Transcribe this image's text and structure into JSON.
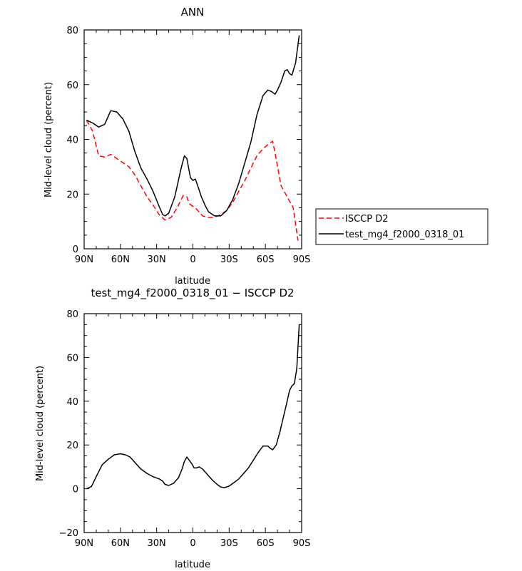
{
  "chart_data": [
    {
      "type": "line",
      "title": "ANN",
      "xlabel": "latitude",
      "ylabel": "Mid-level cloud (percent)",
      "xlim": [
        90,
        -90
      ],
      "ylim": [
        0,
        80
      ],
      "x_ticks": [
        90,
        60,
        30,
        0,
        -30,
        -60,
        -90
      ],
      "x_tick_labels": [
        "90N",
        "60N",
        "30N",
        "0",
        "30S",
        "60S",
        "90S"
      ],
      "y_ticks": [
        0,
        20,
        40,
        60,
        80
      ],
      "y_tick_labels": [
        "0",
        "20",
        "40",
        "60",
        "80"
      ],
      "legend": "right",
      "series": [
        {
          "name": "ISCCP D2",
          "color": "#ff0000",
          "style": "dashed",
          "x": [
            88,
            83,
            78,
            73,
            68,
            63,
            58,
            53,
            48,
            43,
            38,
            33,
            28,
            23,
            18,
            13,
            8,
            5,
            3,
            0,
            -3,
            -5,
            -8,
            -13,
            -18,
            -23,
            -28,
            -33,
            -38,
            -43,
            -48,
            -53,
            -58,
            -63,
            -66,
            -68,
            -73,
            -78,
            -83,
            -87
          ],
          "y": [
            47,
            43,
            34,
            33.5,
            34.5,
            33,
            31.5,
            30,
            27,
            23,
            19,
            16,
            12.5,
            10.5,
            11.5,
            15,
            19.5,
            19,
            16.5,
            15.5,
            14.5,
            13.5,
            12,
            11.5,
            11.5,
            12.5,
            14,
            17,
            21,
            25,
            29.5,
            34,
            36.5,
            38.5,
            39.3,
            35,
            23,
            19,
            15,
            3
          ]
        },
        {
          "name": "test_mg4_f2000_0318_01",
          "color": "#000000",
          "style": "solid",
          "x": [
            88,
            83,
            78,
            73,
            68,
            63,
            58,
            53,
            48,
            43,
            38,
            33,
            28,
            25,
            23,
            20,
            15,
            10,
            7,
            5,
            2,
            0,
            -2,
            -4,
            -7,
            -10,
            -13,
            -18,
            -23,
            -28,
            -33,
            -38,
            -43,
            -48,
            -53,
            -58,
            -62,
            -65,
            -68,
            -70,
            -73,
            -76,
            -78,
            -80,
            -82,
            -85,
            -88
          ],
          "y": [
            47,
            46,
            44.5,
            45.5,
            50.5,
            50,
            47.5,
            43,
            35.5,
            29.5,
            25.5,
            21,
            15.5,
            12.5,
            12,
            13,
            19,
            29,
            34,
            33,
            26,
            25,
            25.5,
            23,
            19,
            16,
            13.5,
            12,
            12,
            14,
            18,
            24,
            31.5,
            39,
            49,
            56,
            58,
            57.5,
            56.5,
            58,
            61,
            65,
            65.5,
            64,
            63.5,
            68,
            78
          ]
        }
      ]
    },
    {
      "type": "line",
      "title": "test_mg4_f2000_0318_01 − ISCCP D2",
      "xlabel": "latitude",
      "ylabel": "Mid-level cloud (percent)",
      "xlim": [
        90,
        -90
      ],
      "ylim": [
        -20,
        80
      ],
      "x_ticks": [
        90,
        60,
        30,
        0,
        -30,
        -60,
        -90
      ],
      "x_tick_labels": [
        "90N",
        "60N",
        "30N",
        "0",
        "30S",
        "60S",
        "90S"
      ],
      "y_ticks": [
        -20,
        0,
        20,
        40,
        60,
        80
      ],
      "y_tick_labels": [
        "−20",
        "0",
        "20",
        "40",
        "60",
        "80"
      ],
      "series": [
        {
          "color": "#000000",
          "style": "solid",
          "x": [
            88,
            84,
            80,
            75,
            70,
            65,
            60,
            56,
            52,
            48,
            43,
            38,
            33,
            28,
            25,
            23,
            20,
            16,
            12,
            9,
            7,
            5,
            3,
            1,
            -1,
            -3,
            -5,
            -8,
            -12,
            -16,
            -20,
            -23,
            -26,
            -30,
            -34,
            -38,
            -42,
            -46,
            -50,
            -54,
            -58,
            -62,
            -64,
            -66,
            -69,
            -72,
            -75,
            -78,
            -80,
            -82,
            -84,
            -86,
            -88
          ],
          "y": [
            0,
            1,
            5.5,
            11,
            13.5,
            15.5,
            16,
            15.5,
            14.5,
            12,
            9,
            7,
            5.5,
            4.5,
            3.5,
            2,
            1.5,
            2.5,
            5,
            9,
            12.5,
            14.5,
            13,
            11.5,
            9.5,
            9.5,
            10,
            9,
            6.5,
            4,
            2,
            0.8,
            0.5,
            1.2,
            2.8,
            4.5,
            7,
            9.5,
            13,
            16.5,
            19.5,
            19.5,
            18.5,
            17.8,
            20,
            26,
            33,
            40,
            45,
            47,
            48,
            55,
            75
          ]
        }
      ]
    }
  ]
}
